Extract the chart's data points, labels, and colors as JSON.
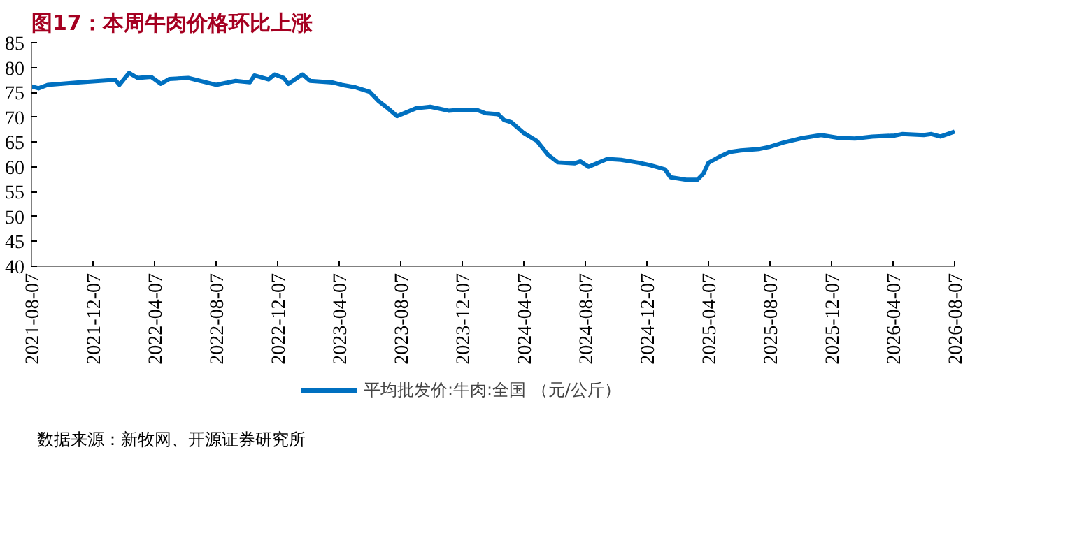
{
  "chart_data": {
    "type": "line",
    "title": "图17：本周牛肉价格环比上涨",
    "x": [
      "2021-08-07",
      "2021-08-21",
      "2021-09-08",
      "2021-11-07",
      "2022-01-20",
      "2022-01-28",
      "2022-02-16",
      "2022-03-05",
      "2022-04-01",
      "2022-04-20",
      "2022-05-07",
      "2022-06-13",
      "2022-08-07",
      "2022-09-15",
      "2022-10-13",
      "2022-10-22",
      "2022-11-19",
      "2022-12-01",
      "2022-12-19",
      "2022-12-28",
      "2023-01-25",
      "2023-02-09",
      "2023-03-25",
      "2023-04-13",
      "2023-05-10",
      "2023-06-07",
      "2023-06-25",
      "2023-07-13",
      "2023-07-31",
      "2023-09-07",
      "2023-10-05",
      "2023-11-10",
      "2023-12-07",
      "2023-12-16",
      "2024-01-04",
      "2024-01-22",
      "2024-02-16",
      "2024-02-28",
      "2024-03-13",
      "2024-04-07",
      "2024-05-03",
      "2024-05-25",
      "2024-06-13",
      "2024-07-16",
      "2024-07-28",
      "2024-08-13",
      "2024-09-19",
      "2024-10-16",
      "2024-11-22",
      "2024-12-14",
      "2025-01-11",
      "2025-01-22",
      "2025-02-22",
      "2025-03-16",
      "2025-03-28",
      "2025-04-07",
      "2025-04-30",
      "2025-05-19",
      "2025-06-10",
      "2025-07-17",
      "2025-08-05",
      "2025-09-03",
      "2025-10-10",
      "2025-11-16",
      "2025-12-22",
      "2026-01-22",
      "2026-02-25",
      "2026-04-10",
      "2026-04-25",
      "2026-06-07",
      "2026-06-22",
      "2026-07-10",
      "2026-08-07"
    ],
    "series": [
      {
        "name": "平均批发价:牛肉:全国 （元/公斤）",
        "color": "#0070c0",
        "values": [
          76.2,
          75.8,
          76.5,
          77.0,
          77.5,
          76.5,
          78.9,
          77.9,
          78.1,
          76.7,
          77.7,
          77.9,
          76.5,
          77.3,
          77.0,
          78.4,
          77.6,
          78.6,
          77.9,
          76.7,
          78.6,
          77.3,
          77.0,
          76.5,
          76.0,
          75.1,
          73.2,
          71.8,
          70.2,
          71.8,
          72.1,
          71.3,
          71.5,
          71.5,
          71.5,
          70.8,
          70.6,
          69.4,
          69.0,
          66.8,
          65.2,
          62.4,
          60.9,
          60.7,
          61.1,
          60.0,
          61.6,
          61.4,
          60.8,
          60.3,
          59.5,
          57.9,
          57.4,
          57.4,
          58.6,
          60.8,
          62.1,
          63.0,
          63.3,
          63.6,
          64.0,
          64.9,
          65.8,
          66.4,
          65.8,
          65.7,
          66.1,
          66.3,
          66.6,
          66.4,
          66.6,
          66.1,
          67.1
        ]
      }
    ],
    "xlim": [
      "2021-08-07",
      "2026-08-07"
    ],
    "xticks": [
      "2021-08-07",
      "2021-12-07",
      "2022-04-07",
      "2022-08-07",
      "2022-12-07",
      "2023-04-07",
      "2023-08-07",
      "2023-12-07",
      "2024-04-07",
      "2024-08-07",
      "2024-12-07",
      "2025-04-07",
      "2025-08-07",
      "2025-12-07",
      "2026-04-07",
      "2026-08-07"
    ],
    "ylim": [
      40,
      85
    ],
    "yticks": [
      40,
      45,
      50,
      55,
      60,
      65,
      70,
      75,
      80,
      85
    ],
    "grid": false,
    "legend": "bottom",
    "marker": "none",
    "line_style": "solid",
    "annotations": [
      "数据来源：新牧网、开源证券研究所"
    ]
  }
}
